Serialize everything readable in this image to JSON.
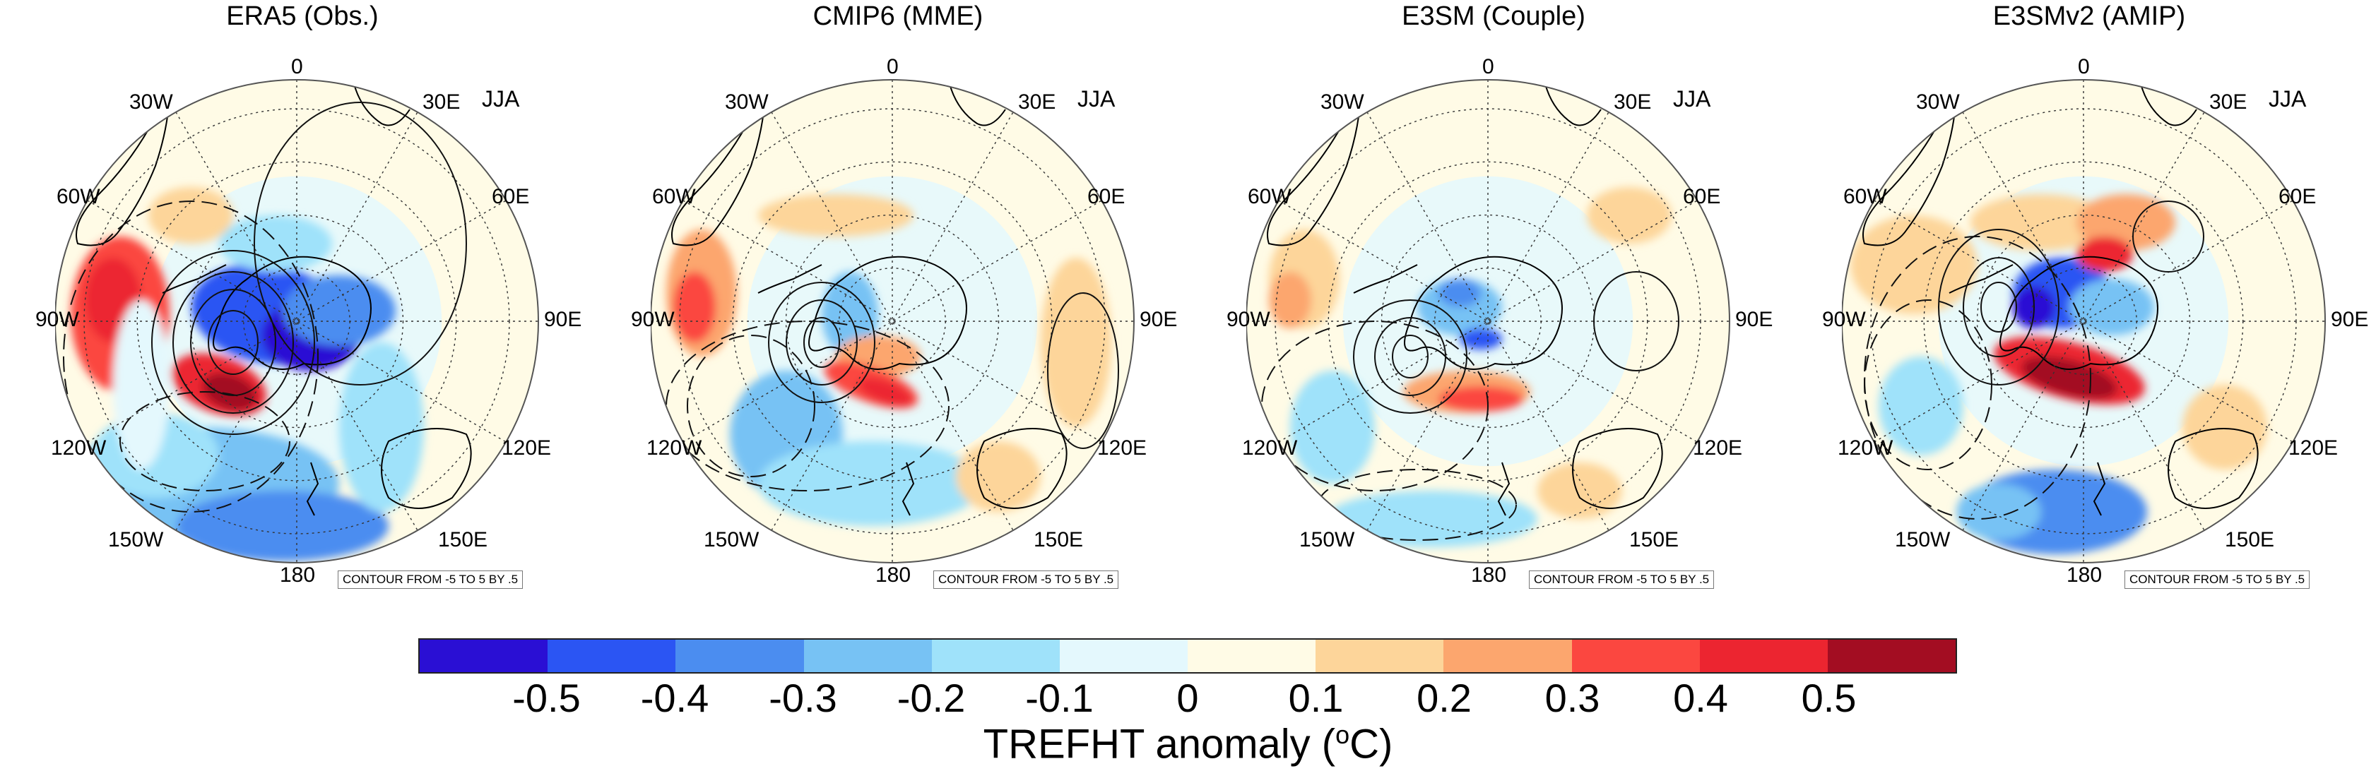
{
  "figure": {
    "season": "JJA",
    "contour_note": "CONTOUR FROM -5 TO 5 BY .5",
    "longitude_labels": {
      "top": "0",
      "upper_left": "30W",
      "upper_right": "30E",
      "mid_left": "60W",
      "mid_right": "60E",
      "left": "90W",
      "right": "90E",
      "lower_left": "120W",
      "lower_right": "120E",
      "bottom_left": "150W",
      "bottom_right": "150E",
      "bottom": "180"
    },
    "panels": [
      {
        "title": "ERA5 (Obs.)"
      },
      {
        "title": "CMIP6 (MME)"
      },
      {
        "title": "E3SM (Couple)"
      },
      {
        "title": "E3SMv2 (AMIP)"
      }
    ]
  },
  "colorbar": {
    "title_main": "TREFHT anomaly (",
    "title_sup": "o",
    "title_end": "C)",
    "tick_labels": [
      "-0.5",
      "-0.4",
      "-0.3",
      "-0.2",
      "-0.1",
      "0",
      "0.1",
      "0.2",
      "0.3",
      "0.4",
      "0.5"
    ],
    "colors": [
      "#2a0fd4",
      "#2b55f3",
      "#4b8df0",
      "#77c2f4",
      "#9fe2fa",
      "#e4f8fd",
      "#fffbe6",
      "#fdd59a",
      "#fca66e",
      "#fb4740",
      "#ec2530",
      "#a30d22"
    ]
  }
}
